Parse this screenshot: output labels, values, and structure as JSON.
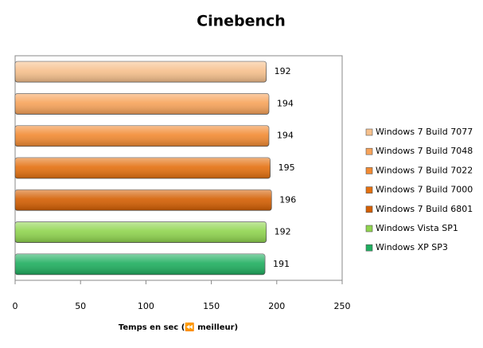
{
  "chart_data": {
    "type": "bar",
    "orientation": "horizontal",
    "title": "Cinebench",
    "x_label": "Temps en sec (⏪ meilleur)",
    "series": [
      {
        "name": "Windows 7 Build  7077",
        "color": "#f6c08c",
        "values": [
          192
        ]
      },
      {
        "name": "Windows 7 Build  7048",
        "color": "#f7a35a",
        "values": [
          194
        ]
      },
      {
        "name": "Windows 7 Build  7022",
        "color": "#f28a32",
        "values": [
          194
        ]
      },
      {
        "name": "Windows 7 Build  7000",
        "color": "#e4700f",
        "values": [
          195
        ]
      },
      {
        "name": "Windows 7 Build  6801",
        "color": "#d45f02",
        "values": [
          196
        ]
      },
      {
        "name": "Windows Vista SP1",
        "color": "#8fd44e",
        "values": [
          192
        ]
      },
      {
        "name": "Windows XP SP3",
        "color": "#1fae5f",
        "values": [
          191
        ]
      }
    ],
    "xlim": [
      0,
      250
    ],
    "xticks": [
      0,
      50,
      100,
      150,
      200,
      250
    ],
    "legend": "right"
  }
}
